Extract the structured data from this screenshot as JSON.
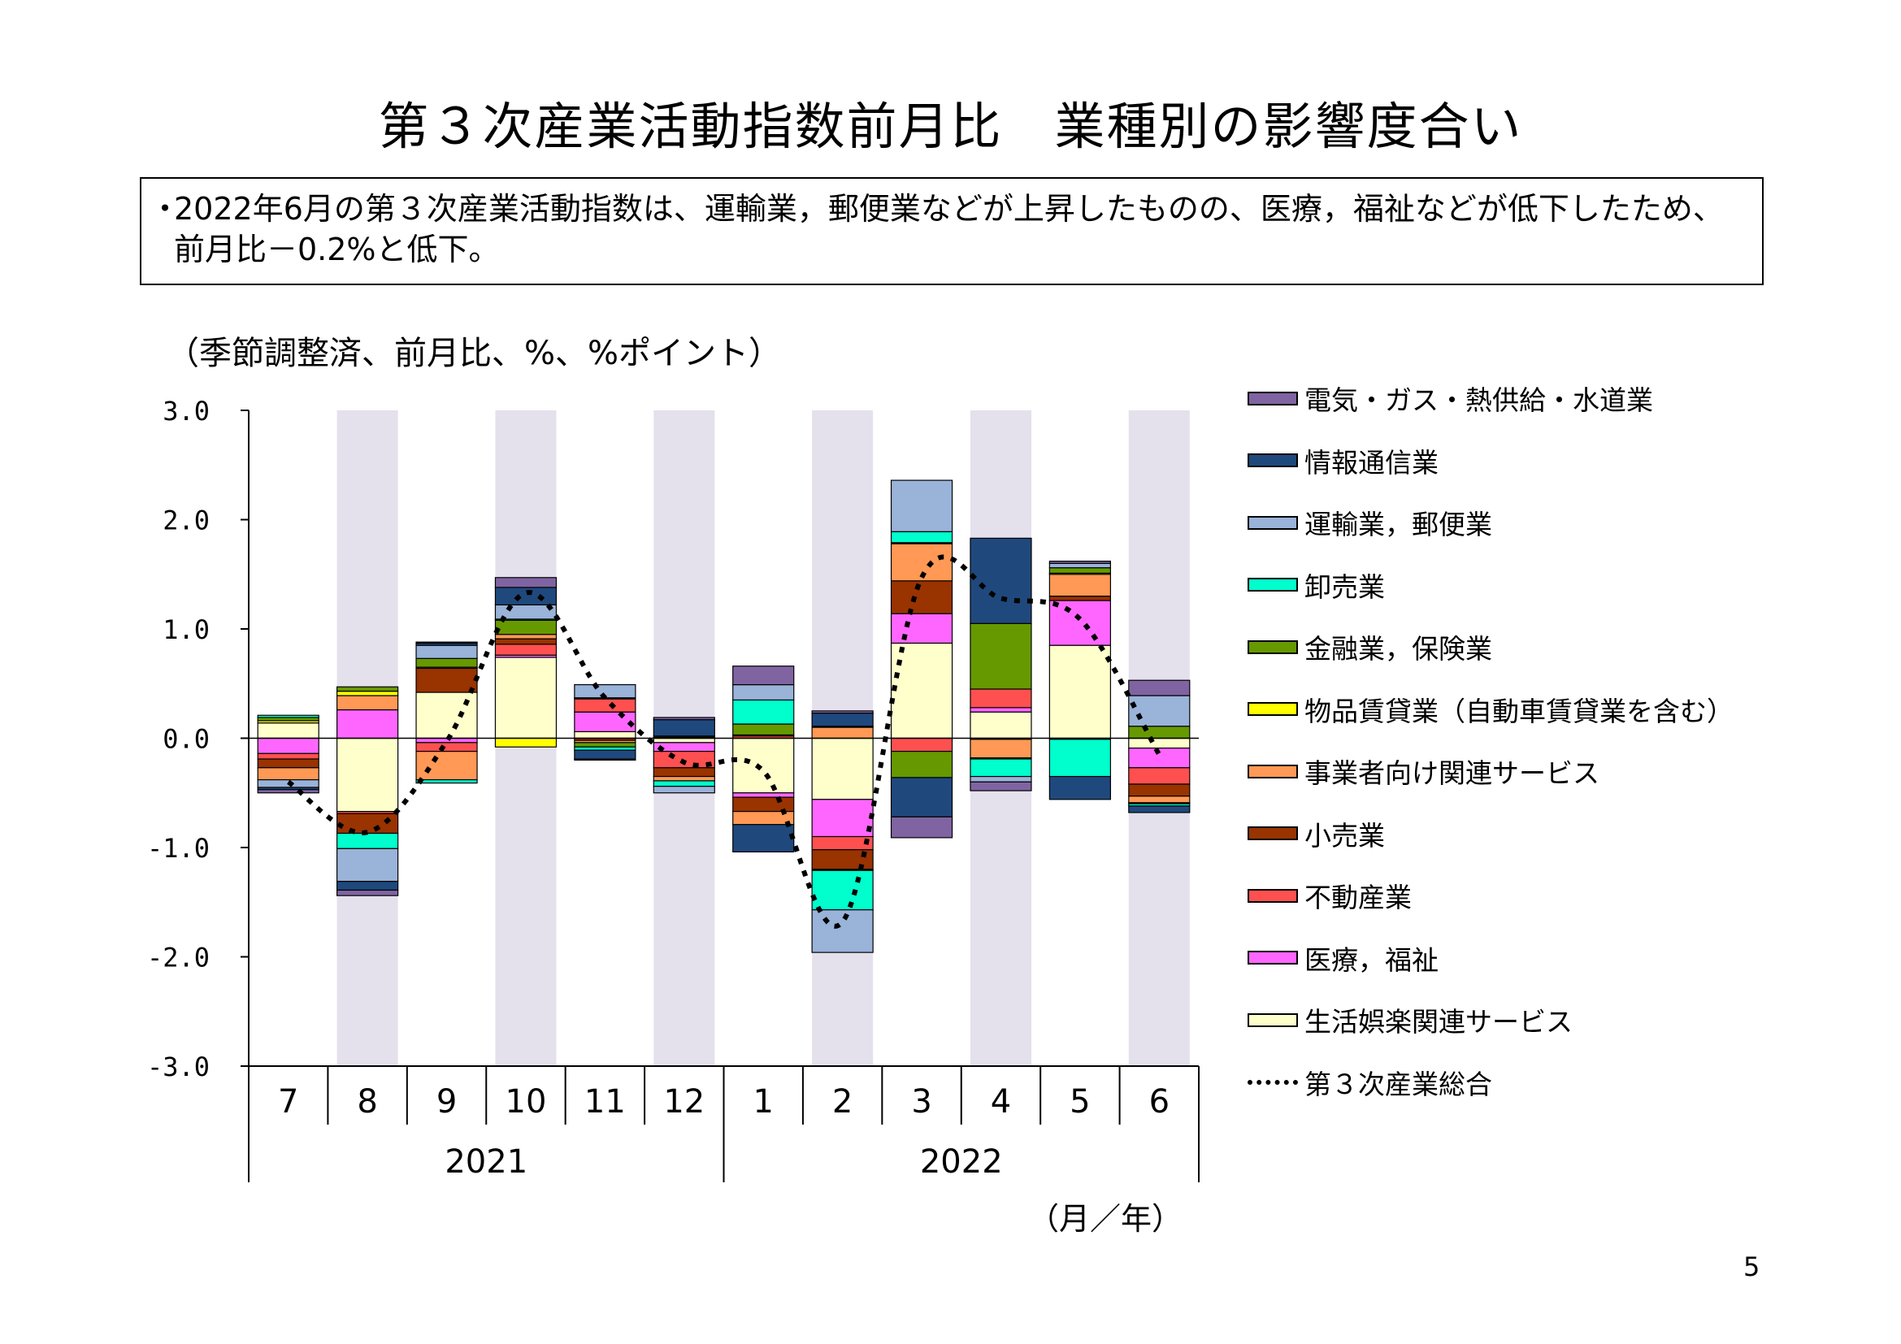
{
  "title": "第３次産業活動指数前月比　業種別の影響度合い",
  "summary": {
    "bullet": "・",
    "text": "2022年6月の第３次産業活動指数は、運輸業，郵便業などが上昇したものの、医療，福祉などが低下したため、前月比－0.2%と低下。"
  },
  "unit_label": "（季節調整済、前月比、%、%ポイント）",
  "axis_unit_label": "（月／年）",
  "page_number": "5",
  "chart_data": {
    "type": "bar",
    "stacked": true,
    "categories": [
      "7",
      "8",
      "9",
      "10",
      "11",
      "12",
      "1",
      "2",
      "3",
      "4",
      "5",
      "6"
    ],
    "year_groups": [
      {
        "label": "2021",
        "span": 6
      },
      {
        "label": "2022",
        "span": 6
      }
    ],
    "ylim": [
      -3.0,
      3.0
    ],
    "yticks": [
      "3.0",
      "2.0",
      "1.0",
      "0.0",
      "-1.0",
      "-2.0",
      "-3.0"
    ],
    "shaded_categories": [
      "8",
      "10",
      "12",
      "2",
      "4",
      "6"
    ],
    "shade_color": "#e4e0ec",
    "legend_position": "right",
    "series": [
      {
        "name": "生活娯楽関連サービス",
        "color": "#ffffcc",
        "values": [
          0.14,
          -0.67,
          0.42,
          0.74,
          0.06,
          -0.04,
          -0.5,
          -0.56,
          0.87,
          0.24,
          0.85,
          -0.09
        ]
      },
      {
        "name": "医療，福祉",
        "color": "#ff66ff",
        "values": [
          -0.14,
          0.26,
          -0.04,
          0.02,
          0.18,
          -0.08,
          -0.04,
          -0.34,
          0.27,
          0.04,
          0.41,
          -0.18
        ]
      },
      {
        "name": "不動産業",
        "color": "#ff5050",
        "values": [
          -0.05,
          -0.02,
          -0.08,
          0.1,
          0.12,
          -0.15,
          0.02,
          -0.12,
          -0.12,
          0.17,
          -0.01,
          -0.15
        ]
      },
      {
        "name": "小売業",
        "color": "#993300",
        "values": [
          -0.08,
          -0.18,
          0.22,
          0.05,
          -0.02,
          -0.08,
          -0.13,
          -0.18,
          0.3,
          -0.01,
          0.04,
          -0.11
        ]
      },
      {
        "name": "事業者向け関連サービス",
        "color": "#ff9955",
        "values": [
          -0.11,
          0.13,
          -0.26,
          0.04,
          -0.02,
          -0.04,
          -0.12,
          0.1,
          0.34,
          -0.17,
          0.2,
          -0.06
        ]
      },
      {
        "name": "物品賃貸業(自動車賃貸業を含む)",
        "color": "#ffff00",
        "values": [
          0.02,
          0.04,
          0.01,
          -0.08,
          0.01,
          0.01,
          0.01,
          -0.01,
          0.01,
          -0.01,
          0.01,
          -0.01
        ]
      },
      {
        "name": "金融業，保険業",
        "color": "#669900",
        "values": [
          0.03,
          0.04,
          0.08,
          0.13,
          -0.04,
          0.01,
          0.1,
          0.01,
          -0.24,
          0.6,
          0.05,
          0.11
        ]
      },
      {
        "name": "卸売業",
        "color": "#00ffcc",
        "values": [
          0.02,
          -0.14,
          -0.03,
          0.01,
          -0.03,
          -0.05,
          0.22,
          -0.36,
          0.1,
          -0.16,
          -0.34,
          -0.02
        ]
      },
      {
        "name": "運輸業，郵便業",
        "color": "#99b3d9",
        "values": [
          -0.07,
          -0.3,
          0.12,
          0.13,
          0.12,
          -0.06,
          0.14,
          -0.39,
          0.47,
          -0.05,
          0.04,
          0.28
        ]
      },
      {
        "name": "情報通信業",
        "color": "#1f497d",
        "values": [
          -0.02,
          -0.08,
          0.02,
          0.16,
          -0.08,
          0.15,
          -0.25,
          0.12,
          -0.36,
          0.78,
          -0.21,
          -0.06
        ]
      },
      {
        "name": "電気・ガス・熱供給・水道業",
        "color": "#8064a2",
        "values": [
          -0.03,
          -0.05,
          0.01,
          0.09,
          -0.01,
          0.02,
          0.17,
          0.02,
          -0.19,
          -0.08,
          0.02,
          0.14
        ]
      }
    ],
    "line_series": {
      "name": "第３次産業総合",
      "style": "dotted",
      "color": "#000000",
      "values": [
        -0.4,
        -0.86,
        -0.03,
        1.33,
        0.37,
        -0.22,
        -0.3,
        -1.68,
        1.47,
        1.28,
        1.09,
        -0.15
      ]
    }
  },
  "legend_items": [
    {
      "label": "電気・ガス・熱供給・水道業",
      "color": "#8064a2"
    },
    {
      "label": "情報通信業",
      "color": "#1f497d"
    },
    {
      "label": "運輸業，郵便業",
      "color": "#99b3d9"
    },
    {
      "label": "卸売業",
      "color": "#00ffcc"
    },
    {
      "label": "金融業，保険業",
      "color": "#669900"
    },
    {
      "label": "物品賃貸業（自動車賃貸業を含む）",
      "color": "#ffff00"
    },
    {
      "label": "事業者向け関連サービス",
      "color": "#ff9955"
    },
    {
      "label": "小売業",
      "color": "#993300"
    },
    {
      "label": "不動産業",
      "color": "#ff5050"
    },
    {
      "label": "医療，福祉",
      "color": "#ff66ff"
    },
    {
      "label": "生活娯楽関連サービス",
      "color": "#ffffcc"
    },
    {
      "label": "第３次産業総合",
      "line": true
    }
  ]
}
